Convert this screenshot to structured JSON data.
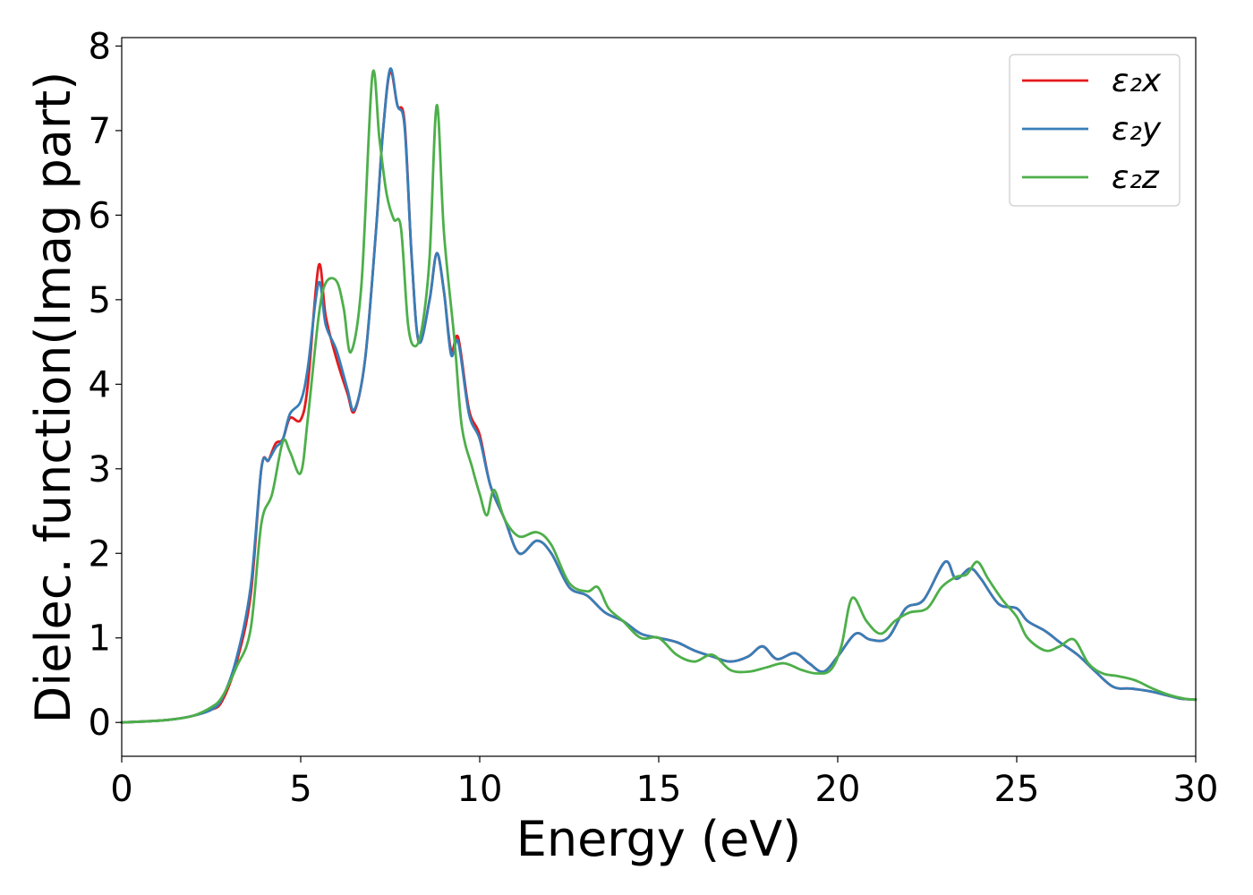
{
  "chart_data": {
    "type": "line",
    "title": "",
    "xlabel": "Energy (eV)",
    "ylabel": "Dielec. function(Imag part)",
    "xlim": [
      0,
      30
    ],
    "ylim": [
      -0.4,
      8.1
    ],
    "xticks": [
      "0",
      "5",
      "10",
      "15",
      "20",
      "25",
      "30"
    ],
    "yticks": [
      "0",
      "1",
      "2",
      "3",
      "4",
      "5",
      "6",
      "7",
      "8"
    ],
    "grid": false,
    "legend_position": "top-right",
    "series": [
      {
        "name": "ε₂x",
        "color": "#e41a1c",
        "points": [
          [
            0,
            0
          ],
          [
            1,
            0.02
          ],
          [
            1.5,
            0.04
          ],
          [
            2,
            0.08
          ],
          [
            2.5,
            0.15
          ],
          [
            2.8,
            0.25
          ],
          [
            3.2,
            0.7
          ],
          [
            3.6,
            1.5
          ],
          [
            3.9,
            3.0
          ],
          [
            4.1,
            3.1
          ],
          [
            4.3,
            3.3
          ],
          [
            4.5,
            3.35
          ],
          [
            4.7,
            3.6
          ],
          [
            5.0,
            3.58
          ],
          [
            5.2,
            4.0
          ],
          [
            5.5,
            5.4
          ],
          [
            5.7,
            4.8
          ],
          [
            6.0,
            4.3
          ],
          [
            6.3,
            3.9
          ],
          [
            6.5,
            3.68
          ],
          [
            6.8,
            4.3
          ],
          [
            7.1,
            5.8
          ],
          [
            7.3,
            7.0
          ],
          [
            7.5,
            7.7
          ],
          [
            7.7,
            7.3
          ],
          [
            7.9,
            7.1
          ],
          [
            8.1,
            5.5
          ],
          [
            8.3,
            4.5
          ],
          [
            8.6,
            5.0
          ],
          [
            8.8,
            5.55
          ],
          [
            9.0,
            5.1
          ],
          [
            9.2,
            4.4
          ],
          [
            9.4,
            4.55
          ],
          [
            9.7,
            3.7
          ],
          [
            10,
            3.4
          ],
          [
            10.3,
            2.8
          ],
          [
            10.7,
            2.4
          ],
          [
            11.1,
            2.0
          ],
          [
            11.6,
            2.15
          ],
          [
            12,
            2.0
          ],
          [
            12.5,
            1.6
          ],
          [
            13,
            1.5
          ],
          [
            13.5,
            1.3
          ],
          [
            14,
            1.2
          ],
          [
            14.5,
            1.05
          ],
          [
            15,
            1.0
          ],
          [
            15.5,
            0.95
          ],
          [
            16,
            0.85
          ],
          [
            16.5,
            0.78
          ],
          [
            17,
            0.72
          ],
          [
            17.5,
            0.78
          ],
          [
            17.9,
            0.9
          ],
          [
            18.3,
            0.75
          ],
          [
            18.8,
            0.82
          ],
          [
            19.2,
            0.7
          ],
          [
            19.6,
            0.6
          ],
          [
            20,
            0.78
          ],
          [
            20.5,
            1.05
          ],
          [
            20.9,
            0.98
          ],
          [
            21.4,
            1.0
          ],
          [
            21.9,
            1.35
          ],
          [
            22.4,
            1.45
          ],
          [
            23.0,
            1.9
          ],
          [
            23.3,
            1.7
          ],
          [
            23.7,
            1.82
          ],
          [
            24.0,
            1.7
          ],
          [
            24.5,
            1.4
          ],
          [
            25,
            1.35
          ],
          [
            25.3,
            1.2
          ],
          [
            25.8,
            1.08
          ],
          [
            26.2,
            0.95
          ],
          [
            26.7,
            0.8
          ],
          [
            27.2,
            0.6
          ],
          [
            27.7,
            0.42
          ],
          [
            28.2,
            0.4
          ],
          [
            28.7,
            0.37
          ],
          [
            29.2,
            0.32
          ],
          [
            29.6,
            0.28
          ],
          [
            30,
            0.27
          ]
        ]
      },
      {
        "name": "ε₂y",
        "color": "#377eb8",
        "points": [
          [
            0,
            0
          ],
          [
            1,
            0.02
          ],
          [
            1.5,
            0.04
          ],
          [
            2,
            0.08
          ],
          [
            2.5,
            0.15
          ],
          [
            2.8,
            0.28
          ],
          [
            3.2,
            0.75
          ],
          [
            3.6,
            1.6
          ],
          [
            3.9,
            3.0
          ],
          [
            4.1,
            3.1
          ],
          [
            4.3,
            3.25
          ],
          [
            4.5,
            3.35
          ],
          [
            4.7,
            3.65
          ],
          [
            5.0,
            3.8
          ],
          [
            5.2,
            4.2
          ],
          [
            5.5,
            5.2
          ],
          [
            5.7,
            4.7
          ],
          [
            6.0,
            4.4
          ],
          [
            6.3,
            3.95
          ],
          [
            6.5,
            3.7
          ],
          [
            6.8,
            4.3
          ],
          [
            7.1,
            5.8
          ],
          [
            7.3,
            7.0
          ],
          [
            7.5,
            7.73
          ],
          [
            7.7,
            7.3
          ],
          [
            7.9,
            7.05
          ],
          [
            8.1,
            5.5
          ],
          [
            8.3,
            4.5
          ],
          [
            8.6,
            5.0
          ],
          [
            8.8,
            5.55
          ],
          [
            9.0,
            5.1
          ],
          [
            9.2,
            4.35
          ],
          [
            9.4,
            4.5
          ],
          [
            9.7,
            3.65
          ],
          [
            10,
            3.35
          ],
          [
            10.3,
            2.8
          ],
          [
            10.7,
            2.4
          ],
          [
            11.1,
            2.0
          ],
          [
            11.6,
            2.15
          ],
          [
            12,
            2.0
          ],
          [
            12.5,
            1.6
          ],
          [
            13,
            1.5
          ],
          [
            13.5,
            1.3
          ],
          [
            14,
            1.2
          ],
          [
            14.5,
            1.05
          ],
          [
            15,
            1.0
          ],
          [
            15.5,
            0.95
          ],
          [
            16,
            0.85
          ],
          [
            16.5,
            0.78
          ],
          [
            17,
            0.72
          ],
          [
            17.5,
            0.78
          ],
          [
            17.9,
            0.9
          ],
          [
            18.3,
            0.75
          ],
          [
            18.8,
            0.82
          ],
          [
            19.2,
            0.7
          ],
          [
            19.6,
            0.6
          ],
          [
            20,
            0.78
          ],
          [
            20.5,
            1.05
          ],
          [
            20.9,
            0.98
          ],
          [
            21.4,
            1.0
          ],
          [
            21.9,
            1.35
          ],
          [
            22.4,
            1.45
          ],
          [
            23.0,
            1.9
          ],
          [
            23.3,
            1.7
          ],
          [
            23.7,
            1.82
          ],
          [
            24.0,
            1.7
          ],
          [
            24.5,
            1.4
          ],
          [
            25,
            1.35
          ],
          [
            25.3,
            1.2
          ],
          [
            25.8,
            1.08
          ],
          [
            26.2,
            0.95
          ],
          [
            26.7,
            0.8
          ],
          [
            27.2,
            0.6
          ],
          [
            27.7,
            0.42
          ],
          [
            28.2,
            0.4
          ],
          [
            28.7,
            0.37
          ],
          [
            29.2,
            0.32
          ],
          [
            29.6,
            0.28
          ],
          [
            30,
            0.27
          ]
        ]
      },
      {
        "name": "ε₂z",
        "color": "#4daf4a",
        "points": [
          [
            0,
            0
          ],
          [
            1,
            0.02
          ],
          [
            1.5,
            0.04
          ],
          [
            2,
            0.08
          ],
          [
            2.5,
            0.18
          ],
          [
            2.8,
            0.3
          ],
          [
            3.2,
            0.65
          ],
          [
            3.6,
            1.1
          ],
          [
            3.9,
            2.35
          ],
          [
            4.2,
            2.7
          ],
          [
            4.5,
            3.32
          ],
          [
            4.7,
            3.2
          ],
          [
            5.0,
            2.95
          ],
          [
            5.2,
            3.6
          ],
          [
            5.5,
            4.8
          ],
          [
            5.7,
            5.2
          ],
          [
            6.0,
            5.22
          ],
          [
            6.2,
            4.9
          ],
          [
            6.4,
            4.38
          ],
          [
            6.7,
            5.2
          ],
          [
            7.0,
            7.65
          ],
          [
            7.2,
            6.9
          ],
          [
            7.4,
            6.25
          ],
          [
            7.6,
            5.95
          ],
          [
            7.8,
            5.85
          ],
          [
            8.0,
            4.7
          ],
          [
            8.2,
            4.45
          ],
          [
            8.4,
            4.7
          ],
          [
            8.6,
            5.5
          ],
          [
            8.8,
            7.3
          ],
          [
            9.0,
            5.8
          ],
          [
            9.3,
            4.5
          ],
          [
            9.5,
            3.5
          ],
          [
            9.8,
            3.0
          ],
          [
            10.0,
            2.7
          ],
          [
            10.2,
            2.45
          ],
          [
            10.4,
            2.75
          ],
          [
            10.7,
            2.4
          ],
          [
            11.1,
            2.2
          ],
          [
            11.6,
            2.25
          ],
          [
            12,
            2.1
          ],
          [
            12.5,
            1.65
          ],
          [
            13,
            1.55
          ],
          [
            13.3,
            1.6
          ],
          [
            13.6,
            1.35
          ],
          [
            14,
            1.2
          ],
          [
            14.5,
            1.0
          ],
          [
            15,
            1.0
          ],
          [
            15.5,
            0.8
          ],
          [
            16,
            0.72
          ],
          [
            16.5,
            0.8
          ],
          [
            17,
            0.62
          ],
          [
            17.5,
            0.6
          ],
          [
            18,
            0.65
          ],
          [
            18.5,
            0.7
          ],
          [
            19,
            0.62
          ],
          [
            19.4,
            0.58
          ],
          [
            19.8,
            0.62
          ],
          [
            20.1,
            0.9
          ],
          [
            20.4,
            1.47
          ],
          [
            20.8,
            1.2
          ],
          [
            21.2,
            1.05
          ],
          [
            21.6,
            1.2
          ],
          [
            22,
            1.3
          ],
          [
            22.5,
            1.35
          ],
          [
            22.9,
            1.6
          ],
          [
            23.3,
            1.72
          ],
          [
            23.6,
            1.75
          ],
          [
            23.9,
            1.9
          ],
          [
            24.2,
            1.7
          ],
          [
            24.6,
            1.45
          ],
          [
            25,
            1.25
          ],
          [
            25.3,
            1.0
          ],
          [
            25.8,
            0.85
          ],
          [
            26.2,
            0.9
          ],
          [
            26.6,
            0.98
          ],
          [
            27.0,
            0.7
          ],
          [
            27.4,
            0.58
          ],
          [
            27.8,
            0.55
          ],
          [
            28.3,
            0.5
          ],
          [
            28.8,
            0.4
          ],
          [
            29.3,
            0.32
          ],
          [
            29.7,
            0.28
          ],
          [
            30,
            0.27
          ]
        ]
      }
    ]
  }
}
